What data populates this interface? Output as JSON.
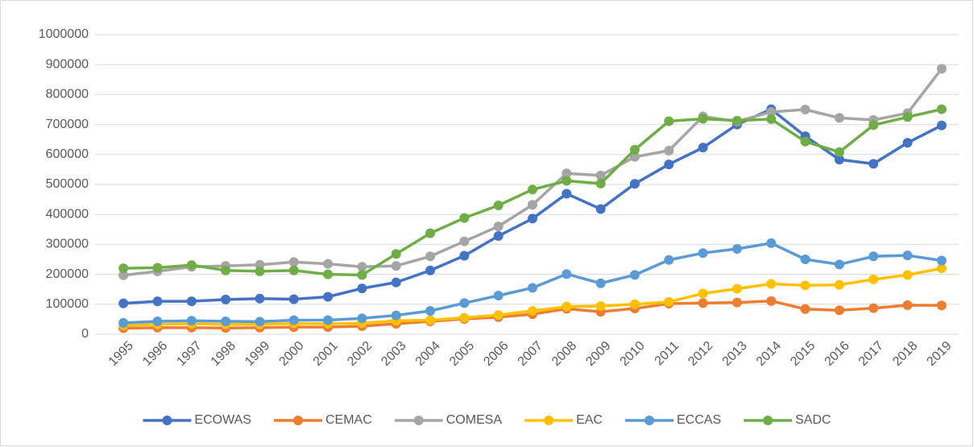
{
  "chart_data": {
    "type": "line",
    "categories": [
      "1995",
      "1996",
      "1997",
      "1998",
      "1999",
      "2000",
      "2001",
      "2002",
      "2003",
      "2004",
      "2005",
      "2006",
      "2007",
      "2008",
      "2009",
      "2010",
      "2011",
      "2012",
      "2013",
      "2014",
      "2015",
      "2016",
      "2017",
      "2018",
      "2019"
    ],
    "series": [
      {
        "name": "ECOWAS",
        "color": "#4472c4",
        "values": [
          103000,
          110000,
          110000,
          116000,
          119000,
          117000,
          125000,
          153000,
          173000,
          213000,
          262000,
          328000,
          386000,
          469000,
          418000,
          502000,
          567000,
          623000,
          700000,
          751000,
          661000,
          583000,
          569000,
          639000,
          697000
        ]
      },
      {
        "name": "CEMAC",
        "color": "#ed7d31",
        "values": [
          20000,
          22000,
          22000,
          21000,
          22000,
          24000,
          24000,
          27000,
          35000,
          43000,
          51000,
          57000,
          67000,
          85000,
          75000,
          86000,
          102000,
          104000,
          106000,
          111000,
          84000,
          80000,
          87000,
          97000,
          96000
        ]
      },
      {
        "name": "COMESA",
        "color": "#a5a5a5",
        "values": [
          197000,
          210000,
          225000,
          228000,
          232000,
          241000,
          235000,
          225000,
          228000,
          260000,
          310000,
          360000,
          432000,
          537000,
          530000,
          592000,
          613000,
          727000,
          710000,
          742000,
          750000,
          722000,
          715000,
          738000,
          886000
        ]
      },
      {
        "name": "EAC",
        "color": "#ffc000",
        "values": [
          30000,
          33000,
          35000,
          33000,
          33000,
          36000,
          35000,
          37000,
          45000,
          47000,
          55000,
          64000,
          78000,
          92000,
          94000,
          100000,
          108000,
          136000,
          152000,
          168000,
          163000,
          165000,
          183000,
          198000,
          220000
        ]
      },
      {
        "name": "ECCAS",
        "color": "#5b9bd5",
        "values": [
          38000,
          43000,
          45000,
          43000,
          42000,
          47000,
          47000,
          53000,
          63000,
          78000,
          104000,
          129000,
          155000,
          201000,
          170000,
          198000,
          248000,
          271000,
          285000,
          304000,
          250000,
          233000,
          260000,
          263000,
          246000
        ]
      },
      {
        "name": "SADC",
        "color": "#70ad47",
        "values": [
          220000,
          222000,
          231000,
          213000,
          210000,
          213000,
          200000,
          198000,
          268000,
          337000,
          388000,
          430000,
          483000,
          512000,
          503000,
          616000,
          711000,
          719000,
          713000,
          718000,
          643000,
          608000,
          698000,
          725000,
          751000
        ]
      }
    ],
    "ylim": [
      0,
      1000000
    ],
    "yticks": [
      0,
      100000,
      200000,
      300000,
      400000,
      500000,
      600000,
      700000,
      800000,
      900000,
      1000000
    ],
    "grid": true,
    "legend": "bottom"
  }
}
